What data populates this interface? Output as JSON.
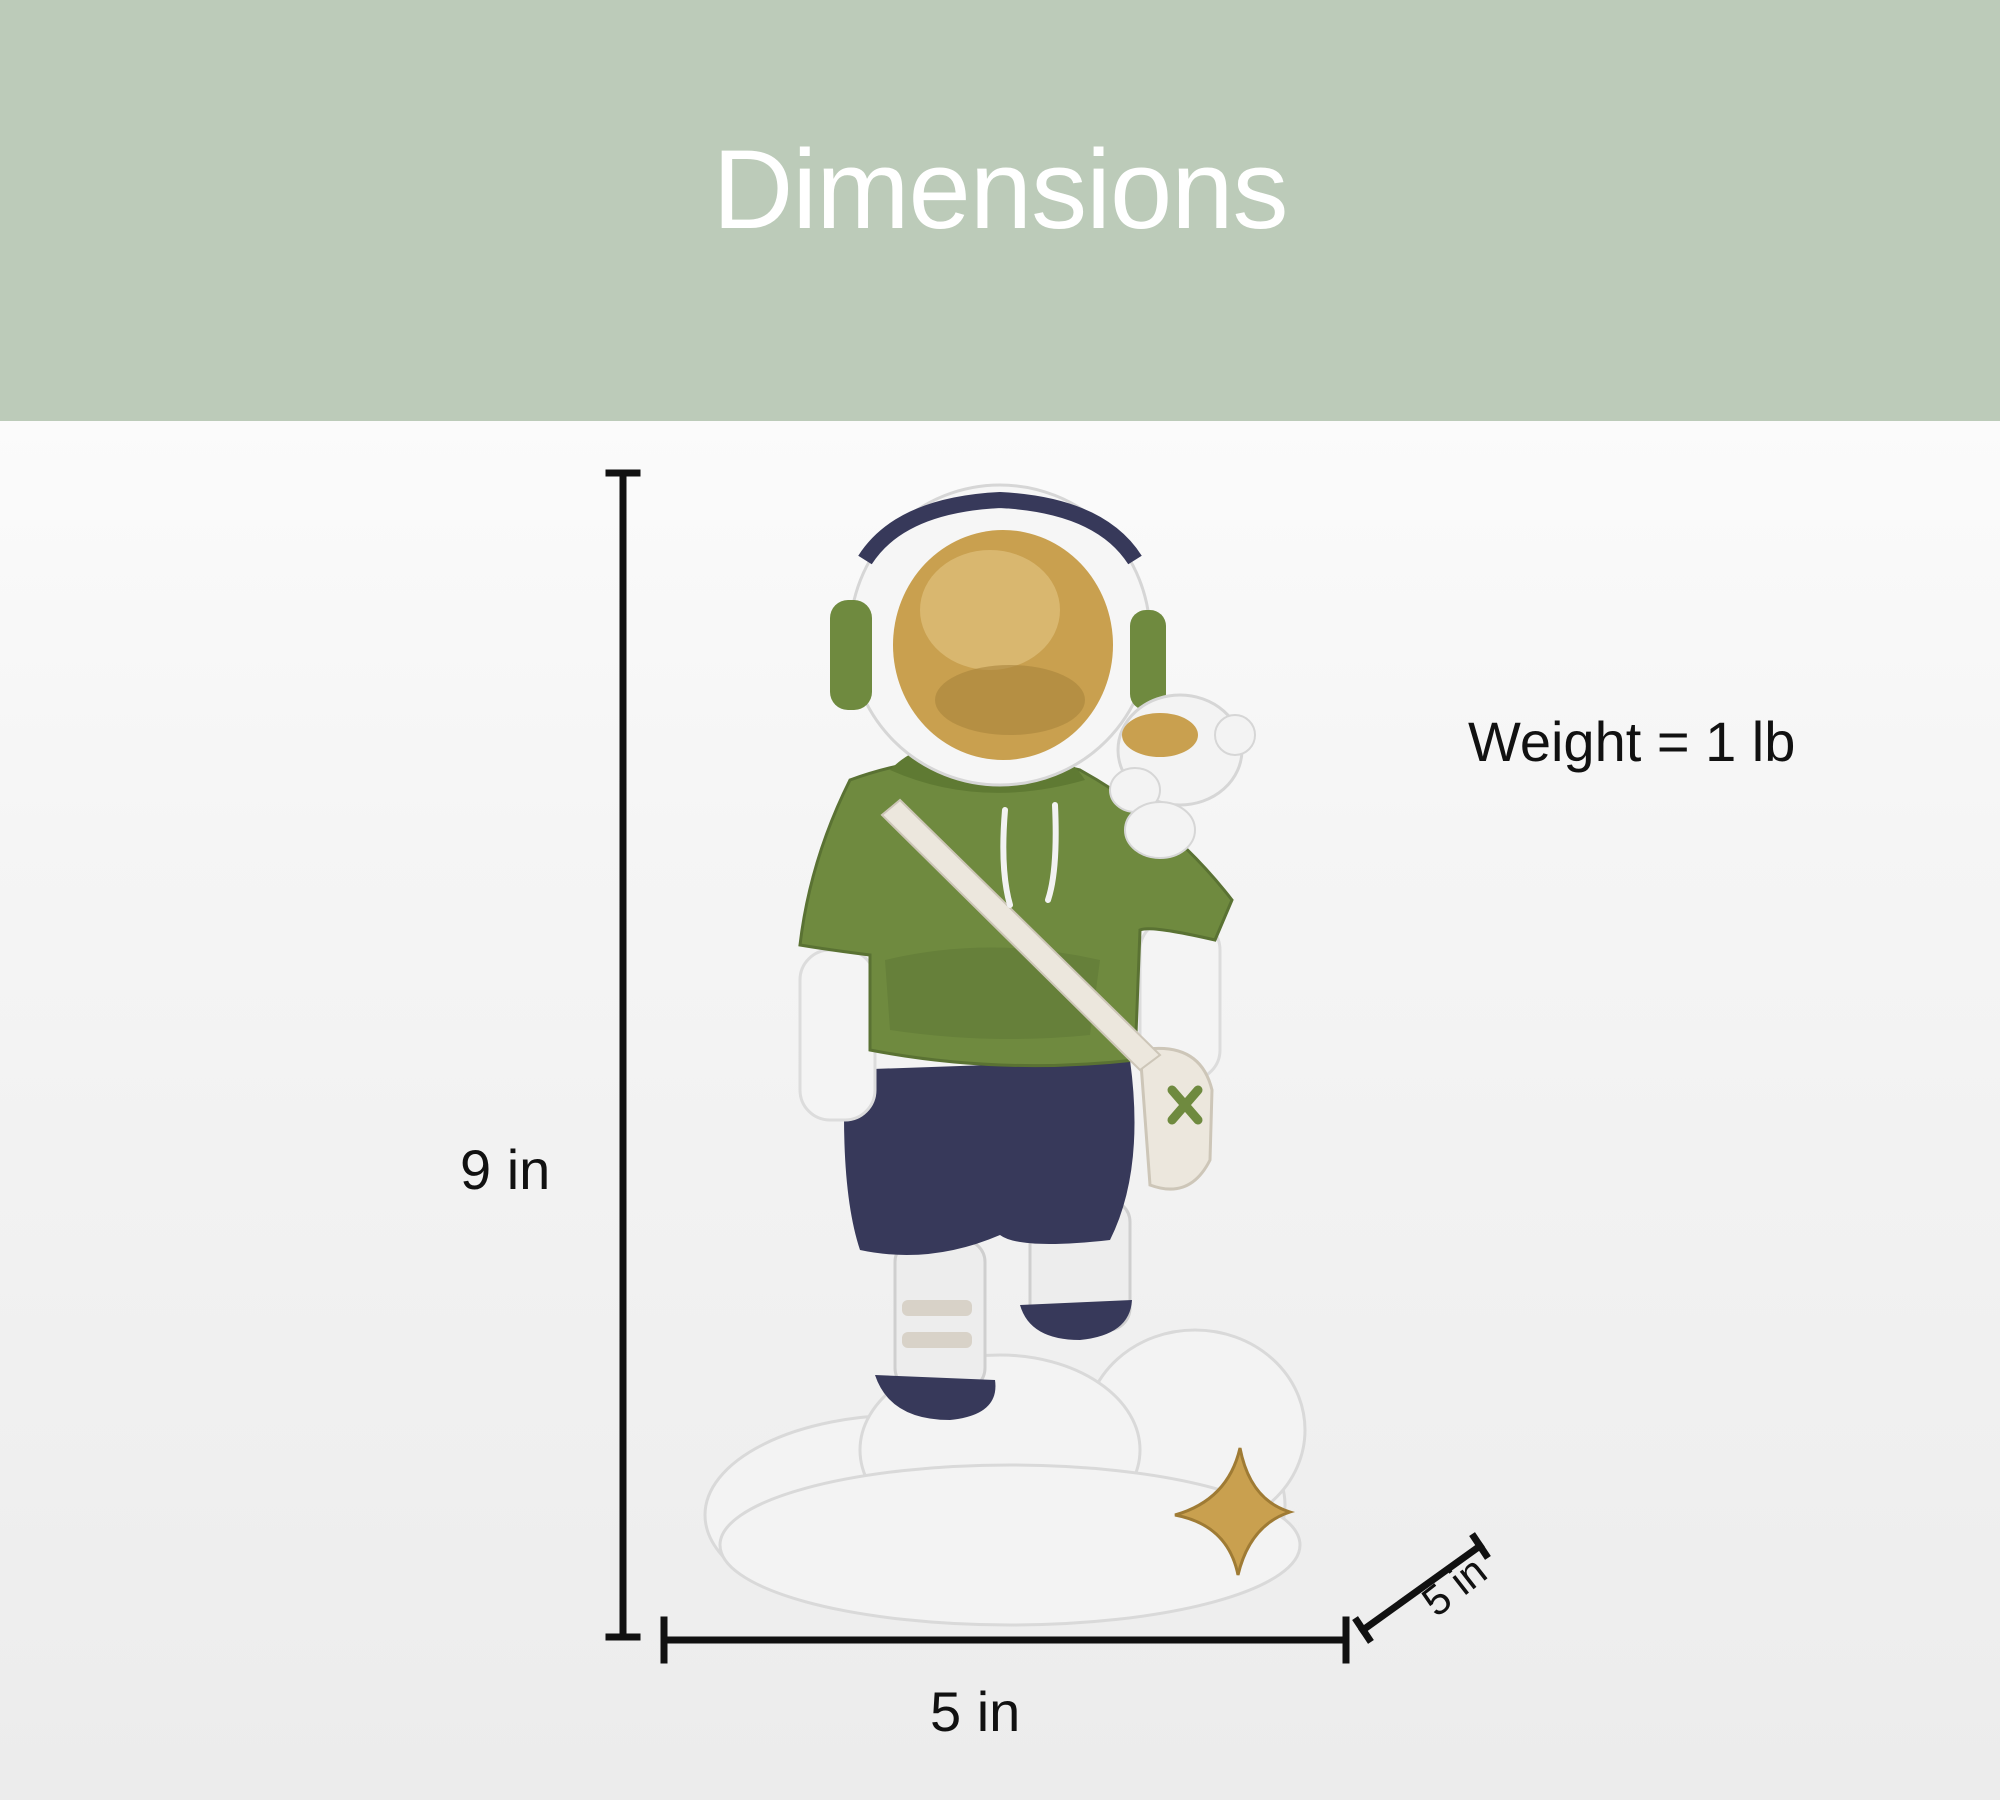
{
  "header": {
    "title": "Dimensions"
  },
  "dimensions": {
    "height_label": "9 in",
    "width_label": "5 in",
    "depth_label": "5 in",
    "weight_label": "Weight = 1 lb"
  },
  "product": {
    "icon": "astronaut-figurine-image"
  },
  "colors": {
    "header_band": "#bccbb9",
    "header_text": "#ffffff",
    "dimension_lines": "#111111",
    "hoodie_green": "#6f8a3f",
    "shorts_navy": "#37395a",
    "visor_gold": "#c9a04f"
  }
}
